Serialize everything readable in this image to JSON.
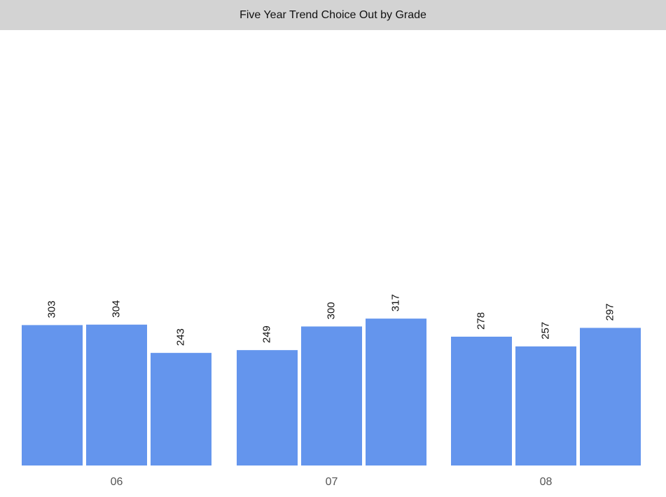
{
  "chart_data": {
    "type": "bar",
    "title": "Five Year Trend Choice Out by Grade",
    "xlabel": "",
    "ylabel": "",
    "categories": [
      "06",
      "07",
      "08"
    ],
    "series": [
      {
        "values": [
          303,
          249,
          278
        ]
      },
      {
        "values": [
          304,
          300,
          257
        ]
      },
      {
        "values": [
          243,
          317,
          297
        ]
      }
    ],
    "ylim": [
      0,
      760
    ],
    "grid": false,
    "legend": "none",
    "colors": {
      "bar": "#6495ed",
      "title_background": "#d3d3d3",
      "category_label": "#555555",
      "value_label": "#111111"
    }
  }
}
